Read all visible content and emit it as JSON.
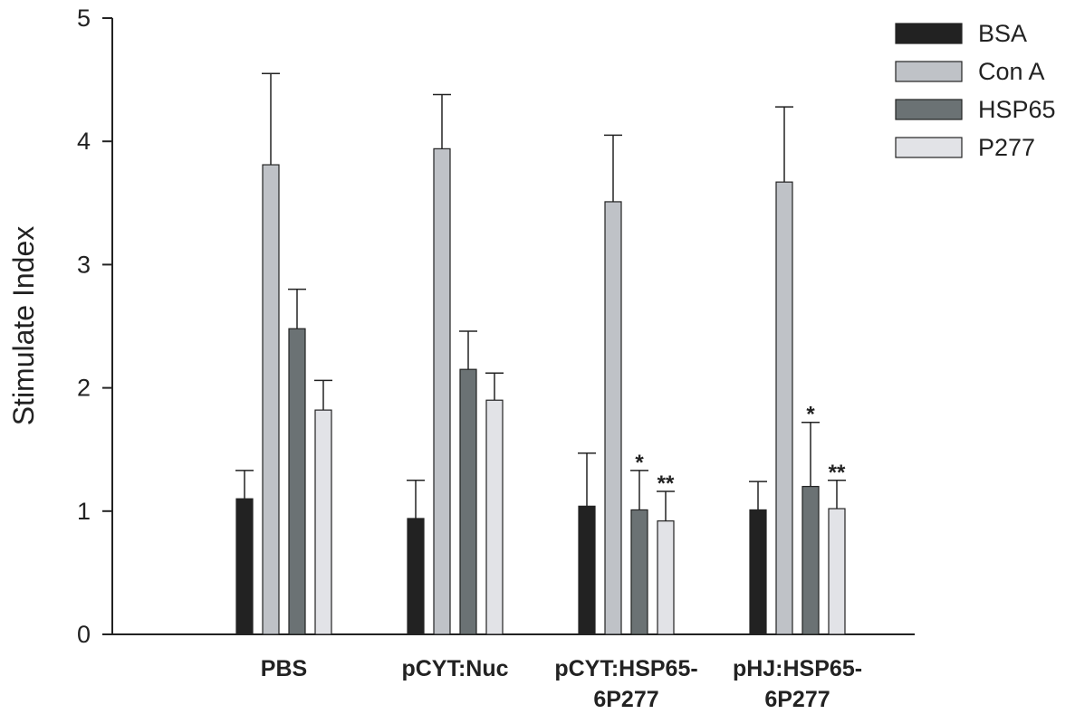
{
  "chart_data": {
    "type": "bar",
    "title": "",
    "xlabel": "",
    "ylabel": "Stimulate Index",
    "ylim": [
      0,
      5
    ],
    "yticks": [
      0,
      1,
      2,
      3,
      4,
      5
    ],
    "grid": false,
    "legend_position": "top-right",
    "categories": [
      {
        "line1": "PBS",
        "line2": ""
      },
      {
        "line1": "pCYT:Nuc",
        "line2": ""
      },
      {
        "line1": "pCYT:HSP65-",
        "line2": "6P277"
      },
      {
        "line1": "pHJ:HSP65-",
        "line2": "6P277"
      }
    ],
    "series": [
      {
        "name": "BSA",
        "color": "#222222",
        "values": [
          1.1,
          0.94,
          1.04,
          1.01
        ],
        "errors": [
          0.23,
          0.31,
          0.43,
          0.23
        ],
        "annotations": [
          "",
          "",
          "",
          ""
        ]
      },
      {
        "name": "Con A",
        "color": "#bfc2c7",
        "values": [
          3.81,
          3.94,
          3.51,
          3.67
        ],
        "errors": [
          0.74,
          0.44,
          0.54,
          0.61
        ],
        "annotations": [
          "",
          "",
          "",
          ""
        ]
      },
      {
        "name": "HSP65",
        "color": "#6b7274",
        "values": [
          2.48,
          2.15,
          1.01,
          1.2
        ],
        "errors": [
          0.32,
          0.31,
          0.32,
          0.52
        ],
        "annotations": [
          "",
          "",
          "*",
          "*"
        ]
      },
      {
        "name": "P277",
        "color": "#e2e3e7",
        "values": [
          1.82,
          1.9,
          0.92,
          1.02
        ],
        "errors": [
          0.24,
          0.22,
          0.24,
          0.23
        ],
        "annotations": [
          "",
          "",
          "**",
          "**"
        ]
      }
    ]
  }
}
